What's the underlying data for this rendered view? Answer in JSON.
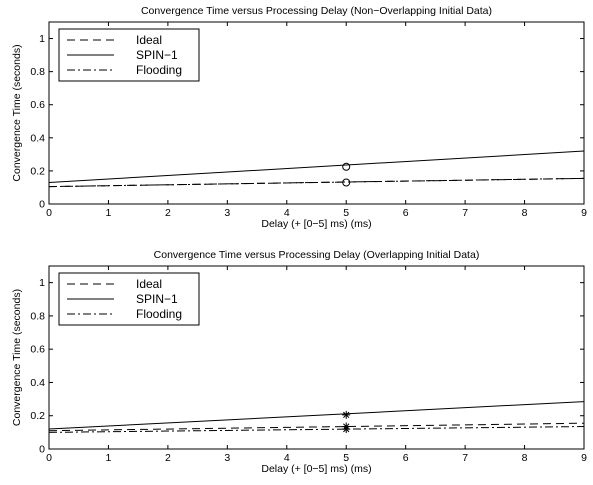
{
  "chart_data": [
    {
      "type": "line",
      "title": "Convergence Time versus Processing Delay (Non−Overlapping Initial Data)",
      "xlabel": "Delay (+ [0−5] ms) (ms)",
      "ylabel": "Convergence Time (seconds)",
      "xlim": [
        0,
        9
      ],
      "ylim": [
        0,
        1.1
      ],
      "xticks": [
        "0",
        "1",
        "2",
        "3",
        "4",
        "5",
        "6",
        "7",
        "8",
        "9"
      ],
      "yticks": [
        "0",
        "0.2",
        "0.4",
        "0.6",
        "0.8",
        "1"
      ],
      "grid": false,
      "legend_position": "top-left",
      "series": [
        {
          "name": "Ideal",
          "style": "dashed",
          "x": [
            0,
            9
          ],
          "y": [
            0.105,
            0.155
          ]
        },
        {
          "name": "SPIN−1",
          "style": "solid",
          "x": [
            0,
            9
          ],
          "y": [
            0.13,
            0.32
          ]
        },
        {
          "name": "Flooding",
          "style": "dashdot",
          "x": [
            0,
            9
          ],
          "y": [
            0.105,
            0.155
          ]
        }
      ],
      "markers": [
        {
          "symbol": "circle",
          "x": 5,
          "y": 0.225
        },
        {
          "symbol": "circle",
          "x": 5,
          "y": 0.13
        }
      ]
    },
    {
      "type": "line",
      "title": "Convergence Time versus Processing Delay (Overlapping Initial Data)",
      "xlabel": "Delay (+ [0−5] ms) (ms)",
      "ylabel": "Convergence Time (seconds)",
      "xlim": [
        0,
        9
      ],
      "ylim": [
        0,
        1.1
      ],
      "xticks": [
        "0",
        "1",
        "2",
        "3",
        "4",
        "5",
        "6",
        "7",
        "8",
        "9"
      ],
      "yticks": [
        "0",
        "0.2",
        "0.4",
        "0.6",
        "0.8",
        "1"
      ],
      "grid": false,
      "legend_position": "top-left",
      "series": [
        {
          "name": "Ideal",
          "style": "dashed",
          "x": [
            0,
            9
          ],
          "y": [
            0.11,
            0.155
          ]
        },
        {
          "name": "SPIN−1",
          "style": "solid",
          "x": [
            0,
            9
          ],
          "y": [
            0.12,
            0.285
          ]
        },
        {
          "name": "Flooding",
          "style": "dashdot",
          "x": [
            0,
            9
          ],
          "y": [
            0.1,
            0.135
          ]
        }
      ],
      "markers": [
        {
          "symbol": "asterisk",
          "x": 5,
          "y": 0.205
        },
        {
          "symbol": "asterisk",
          "x": 5,
          "y": 0.135
        },
        {
          "symbol": "asterisk",
          "x": 5,
          "y": 0.12
        }
      ]
    }
  ]
}
